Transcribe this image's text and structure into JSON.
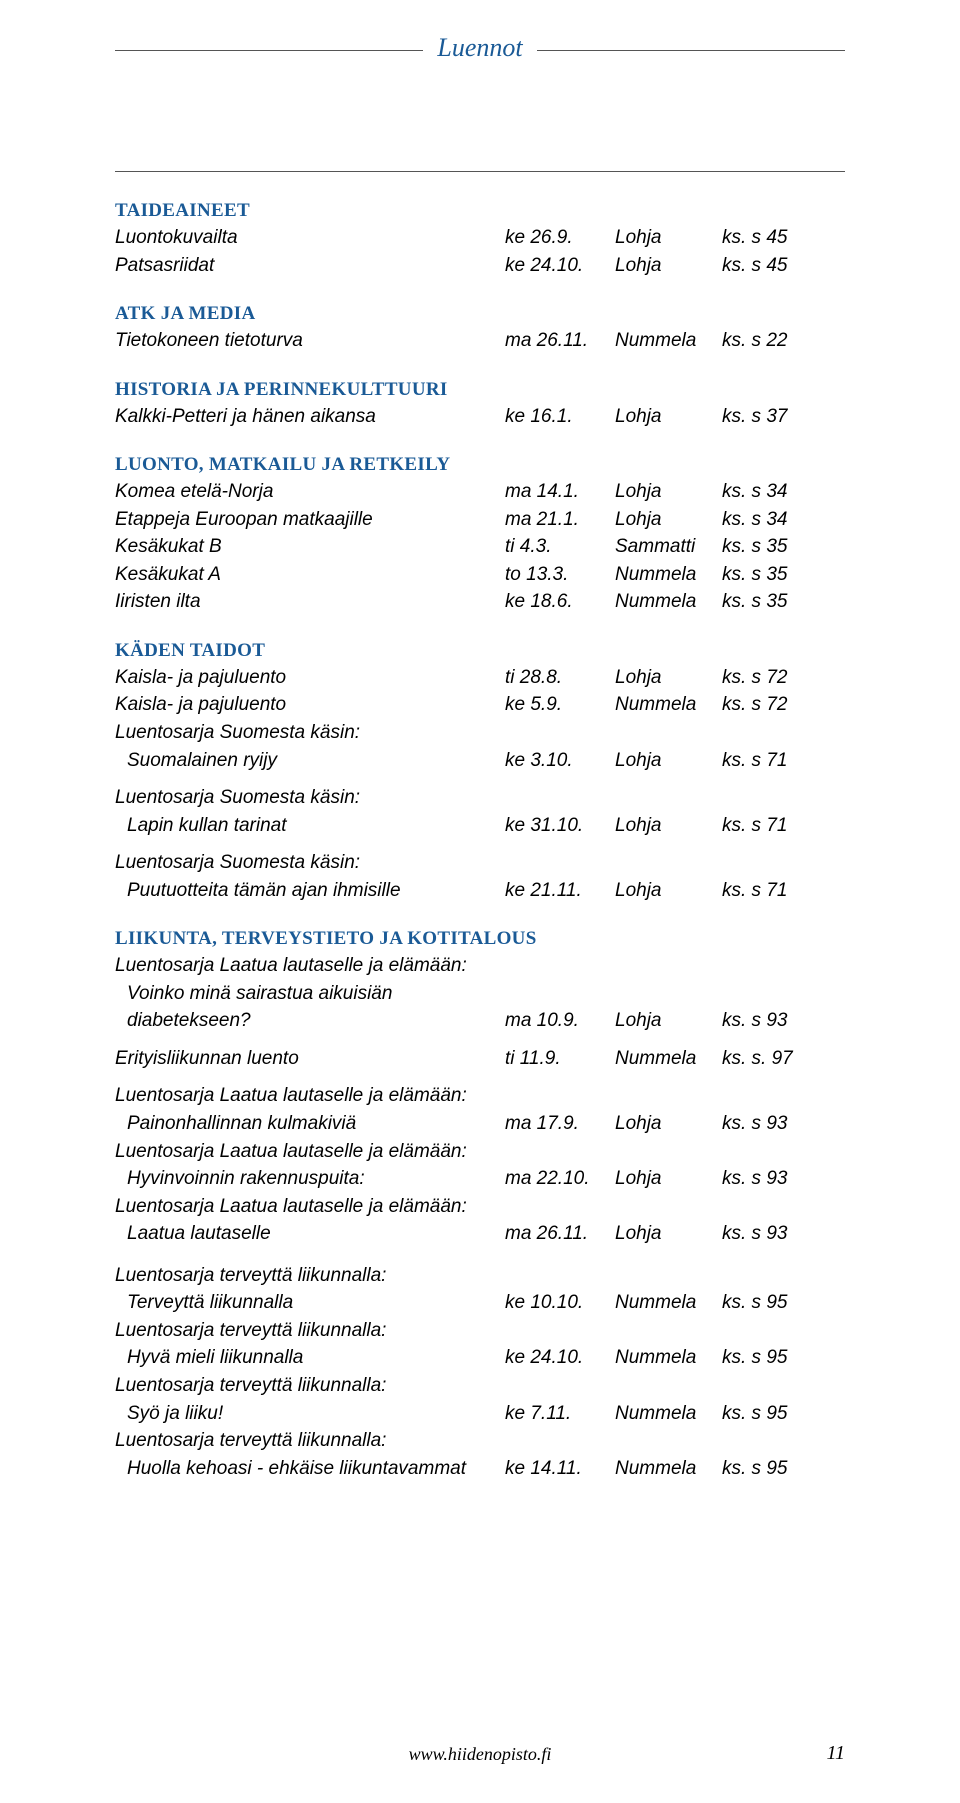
{
  "header": {
    "title": "Luennot"
  },
  "footer": {
    "url": "www.hiidenopisto.fi",
    "page": "11"
  },
  "categories": [
    {
      "heading": "TAIDEAINEET",
      "entries": [
        {
          "title": "Luontokuvailta",
          "date": "ke 26.9.",
          "place": "Lohja",
          "page": "ks. s 45"
        },
        {
          "title": "Patsasriidat",
          "date": "ke 24.10.",
          "place": "Lohja",
          "page": "ks. s 45"
        }
      ]
    },
    {
      "heading": "ATK JA MEDIA",
      "entries": [
        {
          "title": "Tietokoneen tietoturva",
          "date": "ma 26.11.",
          "place": "Nummela",
          "page": "ks. s 22"
        }
      ]
    },
    {
      "heading": "HISTORIA JA PERINNEKULTTUURI",
      "entries": [
        {
          "title": "Kalkki-Petteri ja hänen aikansa",
          "date": "ke 16.1.",
          "place": "Lohja",
          "page": "ks. s 37"
        }
      ]
    },
    {
      "heading": "LUONTO, MATKAILU JA RETKEILY",
      "entries": [
        {
          "title": "Komea etelä-Norja",
          "date": "ma 14.1.",
          "place": "Lohja",
          "page": "ks. s 34"
        },
        {
          "title": "Etappeja Euroopan matkaajille",
          "date": "ma 21.1.",
          "place": "Lohja",
          "page": "ks. s 34"
        },
        {
          "title": "Kesäkukat B",
          "date": "ti 4.3.",
          "place": "Sammatti",
          "page": "ks. s 35"
        },
        {
          "title": "Kesäkukat A",
          "date": "to 13.3.",
          "place": "Nummela",
          "page": "ks. s 35"
        },
        {
          "title": "Iiristen ilta",
          "date": "ke 18.6.",
          "place": "Nummela",
          "page": "ks. s 35"
        }
      ]
    },
    {
      "heading": "KÄDEN TAIDOT",
      "entries": [
        {
          "title": "Kaisla- ja pajuluento",
          "date": "ti 28.8.",
          "place": "Lohja",
          "page": "ks. s 72"
        },
        {
          "title": "Kaisla- ja pajuluento",
          "date": "ke 5.9.",
          "place": "Nummela",
          "page": "ks. s 72"
        }
      ],
      "series": [
        {
          "intro": "Luentosarja Suomesta käsin:",
          "entry": {
            "title": "Suomalainen ryijy",
            "date": "ke 3.10.",
            "place": "Lohja",
            "page": "ks. s 71"
          }
        },
        {
          "intro": "Luentosarja Suomesta käsin:",
          "entry": {
            "title": "Lapin kullan tarinat",
            "date": "ke 31.10.",
            "place": "Lohja",
            "page": "ks. s 71"
          }
        },
        {
          "intro": "Luentosarja Suomesta käsin:",
          "entry": {
            "title": "Puutuotteita tämän ajan ihmisille",
            "date": "ke 21.11.",
            "place": "Lohja",
            "page": "ks. s 71"
          }
        }
      ]
    },
    {
      "heading": "LIIKUNTA, TERVEYSTIETO JA KOTITALOUS",
      "series1": [
        {
          "intro": "Luentosarja Laatua lautaselle ja elämään:",
          "sub": "Voinko minä sairastua aikuisiän",
          "entry": {
            "title": "diabetekseen?",
            "date": "ma 10.9.",
            "place": "Lohja",
            "page": "ks. s 93"
          }
        }
      ],
      "lone": {
        "title": "Erityisliikunnan luento",
        "date": "ti 11.9.",
        "place": "Nummela",
        "page": "ks. s. 97"
      },
      "series2": [
        {
          "intro": "Luentosarja Laatua lautaselle ja elämään:",
          "entry": {
            "title": "Painonhallinnan kulmakiviä",
            "date": "ma 17.9.",
            "place": "Lohja",
            "page": "ks. s 93"
          }
        },
        {
          "intro": "Luentosarja Laatua lautaselle ja elämään:",
          "entry": {
            "title": "Hyvinvoinnin rakennuspuita:",
            "date": "ma 22.10.",
            "place": "Lohja",
            "page": "ks. s 93"
          }
        },
        {
          "intro": "Luentosarja Laatua lautaselle ja elämään:",
          "entry": {
            "title": "Laatua lautaselle",
            "date": "ma 26.11.",
            "place": "Lohja",
            "page": "ks. s 93"
          }
        }
      ],
      "series3": [
        {
          "intro": "Luentosarja terveyttä liikunnalla:",
          "entry": {
            "title": "Terveyttä liikunnalla",
            "date": "ke 10.10.",
            "place": "Nummela",
            "page": "ks. s 95"
          }
        },
        {
          "intro": "Luentosarja terveyttä liikunnalla:",
          "entry": {
            "title": "Hyvä mieli liikunnalla",
            "date": "ke 24.10.",
            "place": "Nummela",
            "page": "ks. s 95"
          }
        },
        {
          "intro": "Luentosarja terveyttä liikunnalla:",
          "entry": {
            "title": "Syö ja liiku!",
            "date": "ke 7.11.",
            "place": "Nummela",
            "page": "ks. s 95"
          }
        },
        {
          "intro": "Luentosarja terveyttä liikunnalla:",
          "entry": {
            "title": "Huolla kehoasi - ehkäise liikuntavammat",
            "date": "ke 14.11.",
            "place": "Nummela",
            "page": "ks. s 95"
          }
        }
      ]
    }
  ]
}
